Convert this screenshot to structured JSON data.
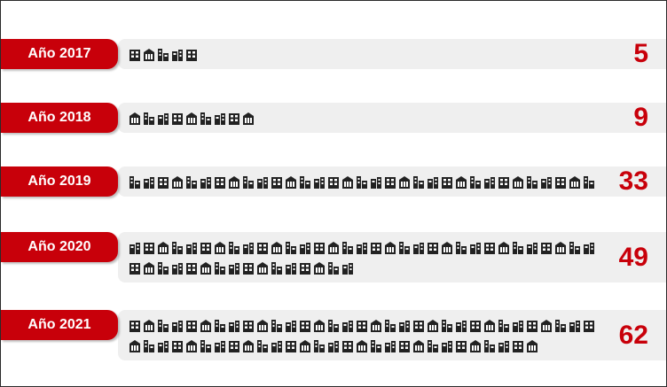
{
  "chart_data": {
    "type": "pictograph",
    "title": "",
    "categories": [
      "Año 2017",
      "Año 2018",
      "Año 2019",
      "Año 2020",
      "Año 2021"
    ],
    "values": [
      5,
      9,
      33,
      49,
      62
    ],
    "colors": {
      "label_bg": "#c8000a",
      "value": "#c8000a",
      "icon": "#222222",
      "band": "#efefef"
    },
    "icon": "building-icon"
  }
}
